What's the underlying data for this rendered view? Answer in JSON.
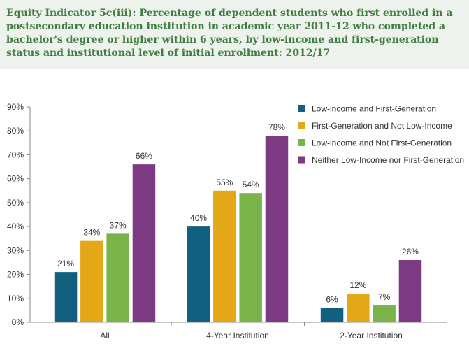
{
  "chart_data": {
    "type": "bar",
    "title": "Equity Indicator 5c(iii): Percentage of dependent students who first enrolled in a postsecondary education institution in academic year 2011-12 who completed a bachelor's degree or higher within 6 years, by low-income and first-generation status and institutional level of initial enrollment: 2012/17",
    "xlabel": "",
    "ylabel": "",
    "ylim": [
      0,
      90
    ],
    "yticks": [
      "0%",
      "10%",
      "20%",
      "30%",
      "40%",
      "50%",
      "60%",
      "70%",
      "80%",
      "90%"
    ],
    "grid": false,
    "legend_position": "top-right",
    "categories": [
      "All",
      "4-Year Institution",
      "2-Year Institution"
    ],
    "series": [
      {
        "name": "Low-income and First-Generation",
        "color": "#12607f",
        "values": [
          21,
          40,
          6
        ],
        "labels": [
          "21%",
          "40%",
          "6%"
        ]
      },
      {
        "name": "First-Generation and Not Low-Income",
        "color": "#e3a718",
        "values": [
          34,
          55,
          12
        ],
        "labels": [
          "34%",
          "55%",
          "12%"
        ]
      },
      {
        "name": "Low-income and Not First-Generation",
        "color": "#7ab34a",
        "values": [
          37,
          54,
          7
        ],
        "labels": [
          "37%",
          "54%",
          "7%"
        ]
      },
      {
        "name": "Neither Low-Income nor First-Generation",
        "color": "#7b3a82",
        "values": [
          66,
          78,
          26
        ],
        "labels": [
          "66%",
          "78%",
          "26%"
        ]
      }
    ]
  }
}
